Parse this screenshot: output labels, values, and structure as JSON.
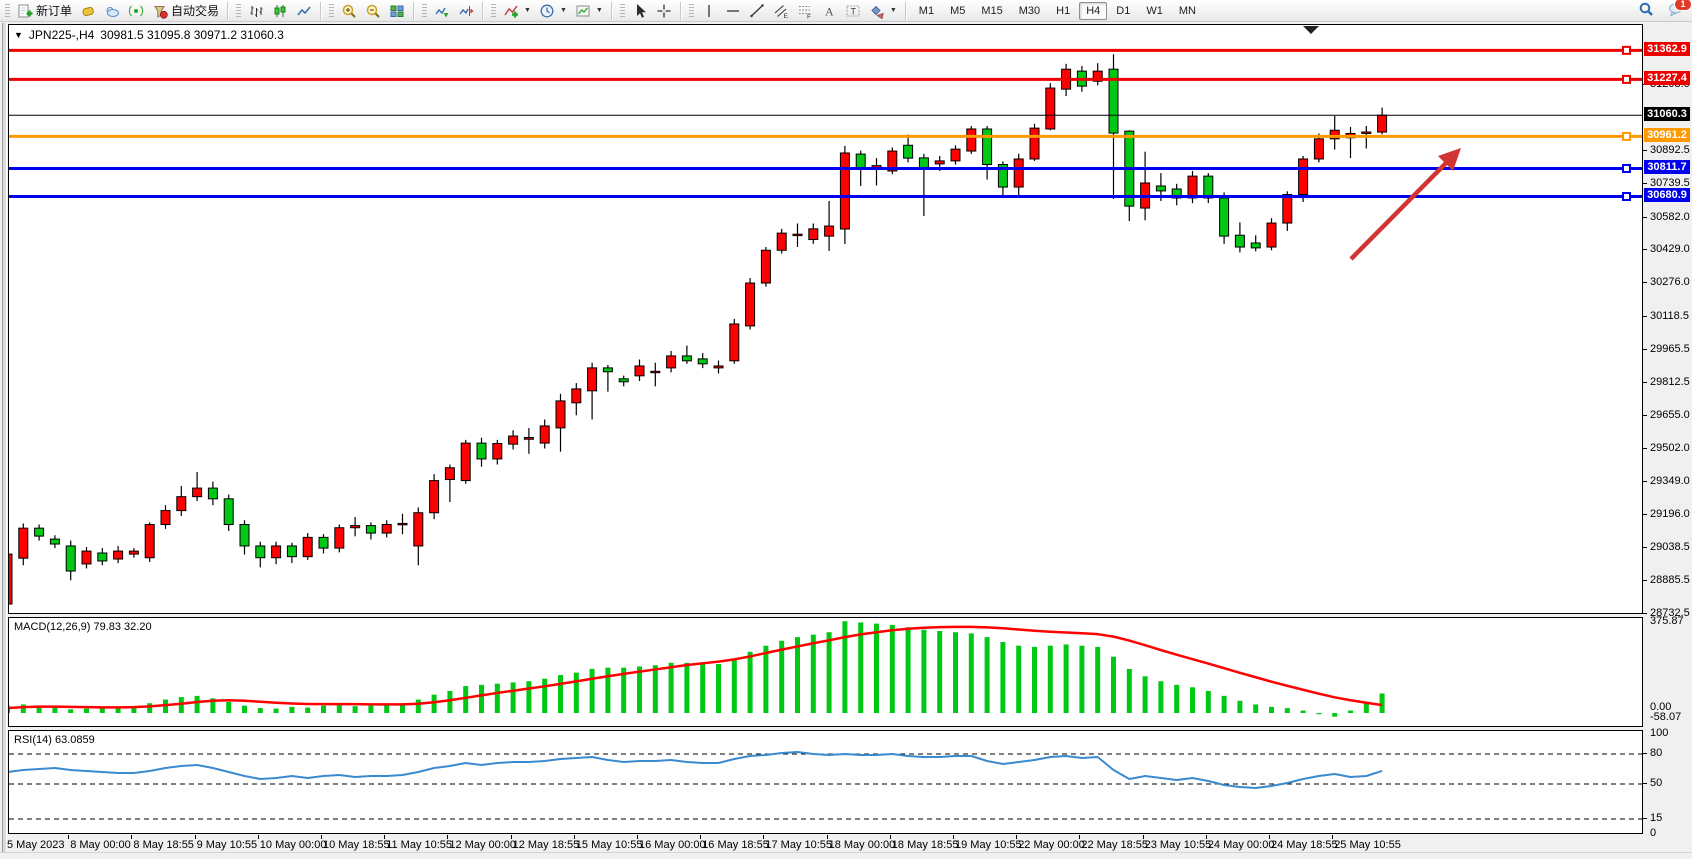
{
  "toolbar": {
    "groups": [
      {
        "items": [
          {
            "name": "new-order-button",
            "icon": "doc-plus-icon",
            "label": "新订单"
          },
          {
            "name": "deposit-button",
            "icon": "gold-icon"
          },
          {
            "name": "webtrader-button",
            "icon": "cloud-icon"
          },
          {
            "name": "signals-button",
            "icon": "signal-icon"
          },
          {
            "name": "auto-trading-button",
            "icon": "autotrade-icon",
            "label": "自动交易"
          }
        ]
      },
      {
        "items": [
          {
            "name": "bar-chart-button",
            "icon": "bar-chart-icon"
          },
          {
            "name": "candle-chart-button",
            "icon": "candle-chart-icon"
          },
          {
            "name": "line-chart-button",
            "icon": "line-chart-icon"
          }
        ]
      },
      {
        "items": [
          {
            "name": "zoom-in-button",
            "icon": "zoom-in-icon"
          },
          {
            "name": "zoom-out-button",
            "icon": "zoom-out-icon"
          },
          {
            "name": "tile-windows-button",
            "icon": "tile-windows-icon"
          }
        ]
      },
      {
        "items": [
          {
            "name": "auto-scroll-button",
            "icon": "auto-scroll-icon"
          },
          {
            "name": "chart-shift-button",
            "icon": "chart-shift-icon"
          }
        ]
      },
      {
        "items": [
          {
            "name": "indicators-button",
            "icon": "indicators-icon",
            "dropdown": true
          },
          {
            "name": "periods-button",
            "icon": "clock-icon",
            "dropdown": true
          },
          {
            "name": "templates-button",
            "icon": "template-icon",
            "dropdown": true
          }
        ]
      },
      {
        "items": [
          {
            "name": "cursor-button",
            "icon": "cursor-icon"
          },
          {
            "name": "crosshair-button",
            "icon": "crosshair-icon"
          }
        ]
      },
      {
        "items": [
          {
            "name": "vline-button",
            "icon": "vline-icon"
          },
          {
            "name": "hline-button",
            "icon": "hline-icon"
          },
          {
            "name": "trendline-button",
            "icon": "trendline-icon"
          },
          {
            "name": "channel-button",
            "icon": "channel-icon"
          },
          {
            "name": "fibonacci-button",
            "icon": "fibonacci-icon"
          },
          {
            "name": "text-button",
            "icon": "text-icon"
          },
          {
            "name": "text-label-button",
            "icon": "text-label-icon"
          },
          {
            "name": "shapes-button",
            "icon": "shapes-icon",
            "dropdown": true
          }
        ]
      }
    ],
    "timeframes": [
      "M1",
      "M5",
      "M15",
      "M30",
      "H1",
      "H4",
      "D1",
      "W1",
      "MN"
    ],
    "active_timeframe": "H4",
    "notification_count": "1"
  },
  "chart_data": {
    "type": "candlestick",
    "symbol": "JPN225-",
    "timeframe": "H4",
    "title": "JPN225-,H4",
    "ohlc_label": "30981.5 31095.8 30971.2 31060.3",
    "current_price": 31060.3,
    "up_color": "#ff0000",
    "down_color": "#00c814",
    "levels": [
      {
        "price": 31362.9,
        "label": "31362.9",
        "color": "#ee0000",
        "width": 3
      },
      {
        "price": 31227.4,
        "label": "31227.4",
        "color": "#ee0000",
        "width": 3
      },
      {
        "price": 30961.2,
        "label": "30961.2",
        "color": "#ff9900",
        "width": 3
      },
      {
        "price": 30811.7,
        "label": "30811.7",
        "color": "#0000ee",
        "width": 3
      },
      {
        "price": 30680.9,
        "label": "30680.9",
        "color": "#0000ee",
        "width": 3
      }
    ],
    "price_ticks": [
      31203.0,
      30892.5,
      30739.5,
      30582.0,
      30429.0,
      30276.0,
      30118.5,
      29965.5,
      29812.5,
      29655.0,
      29502.0,
      29349.0,
      29196.0,
      29038.5,
      28885.5,
      28732.5
    ],
    "time_labels": [
      "5 May 2023",
      "8 May 00:00",
      "8 May 18:55",
      "9 May 10:55",
      "10 May 00:00",
      "10 May 18:55",
      "11 May 10:55",
      "12 May 00:00",
      "12 May 18:55",
      "15 May 10:55",
      "16 May 00:00",
      "16 May 18:55",
      "17 May 10:55",
      "18 May 00:00",
      "18 May 18:55",
      "19 May 10:55",
      "22 May 00:00",
      "22 May 18:55",
      "23 May 10:55",
      "24 May 00:00",
      "24 May 18:55",
      "25 May 10:55"
    ],
    "candles": [
      [
        28779,
        29030,
        28735,
        29012
      ],
      [
        28993,
        29155,
        28960,
        29133
      ],
      [
        29133,
        29150,
        29075,
        29096
      ],
      [
        29082,
        29100,
        29040,
        29059
      ],
      [
        29050,
        29075,
        28890,
        28933
      ],
      [
        28966,
        29045,
        28945,
        29026
      ],
      [
        29017,
        29040,
        28960,
        28980
      ],
      [
        28989,
        29050,
        28970,
        29026
      ],
      [
        29012,
        29040,
        28995,
        29026
      ],
      [
        28995,
        29160,
        28975,
        29150
      ],
      [
        29150,
        29240,
        29130,
        29215
      ],
      [
        29215,
        29330,
        29190,
        29280
      ],
      [
        29280,
        29395,
        29260,
        29320
      ],
      [
        29320,
        29350,
        29240,
        29270
      ],
      [
        29270,
        29290,
        29120,
        29150
      ],
      [
        29150,
        29170,
        29010,
        29050
      ],
      [
        29050,
        29070,
        28950,
        28995
      ],
      [
        28995,
        29070,
        28965,
        29050
      ],
      [
        29050,
        29065,
        28970,
        29000
      ],
      [
        29000,
        29110,
        28985,
        29090
      ],
      [
        29090,
        29105,
        29015,
        29040
      ],
      [
        29040,
        29150,
        29020,
        29135
      ],
      [
        29135,
        29185,
        29095,
        29145
      ],
      [
        29145,
        29160,
        29080,
        29110
      ],
      [
        29110,
        29170,
        29090,
        29150
      ],
      [
        29150,
        29200,
        29105,
        29155
      ],
      [
        29050,
        29230,
        28960,
        29205
      ],
      [
        29205,
        29385,
        29175,
        29355
      ],
      [
        29360,
        29430,
        29255,
        29415
      ],
      [
        29355,
        29545,
        29340,
        29530
      ],
      [
        29530,
        29555,
        29420,
        29456
      ],
      [
        29456,
        29545,
        29430,
        29528
      ],
      [
        29525,
        29590,
        29500,
        29563
      ],
      [
        29548,
        29600,
        29480,
        29556
      ],
      [
        29530,
        29640,
        29505,
        29610
      ],
      [
        29601,
        29760,
        29490,
        29727
      ],
      [
        29718,
        29810,
        29660,
        29783
      ],
      [
        29774,
        29905,
        29640,
        29881
      ],
      [
        29881,
        29895,
        29770,
        29863
      ],
      [
        29830,
        29845,
        29795,
        29816
      ],
      [
        29844,
        29920,
        29820,
        29890
      ],
      [
        29860,
        29905,
        29795,
        29865
      ],
      [
        29881,
        29960,
        29860,
        29937
      ],
      [
        29937,
        29985,
        29900,
        29914
      ],
      [
        29923,
        29950,
        29880,
        29900
      ],
      [
        29881,
        29915,
        29855,
        29890
      ],
      [
        29914,
        30110,
        29900,
        30086
      ],
      [
        30077,
        30300,
        30060,
        30277
      ],
      [
        30277,
        30445,
        30260,
        30430
      ],
      [
        30430,
        30530,
        30415,
        30510
      ],
      [
        30500,
        30555,
        30445,
        30505
      ],
      [
        30480,
        30555,
        30460,
        30530
      ],
      [
        30496,
        30660,
        30427,
        30543
      ],
      [
        30529,
        30917,
        30459,
        30884
      ],
      [
        30879,
        30895,
        30730,
        30809
      ],
      [
        30815,
        30860,
        30732,
        30825
      ],
      [
        30800,
        30910,
        30785,
        30893
      ],
      [
        30920,
        30970,
        30840,
        30860
      ],
      [
        30861,
        30880,
        30590,
        30814
      ],
      [
        30833,
        30870,
        30800,
        30847
      ],
      [
        30847,
        30920,
        30830,
        30902
      ],
      [
        30893,
        31010,
        30880,
        30996
      ],
      [
        30996,
        31010,
        30760,
        30830
      ],
      [
        30830,
        30845,
        30680,
        30725
      ],
      [
        30725,
        30880,
        30680,
        30856
      ],
      [
        30856,
        31020,
        30847,
        31000
      ],
      [
        30996,
        31210,
        30990,
        31187
      ],
      [
        31182,
        31300,
        31150,
        31275
      ],
      [
        31266,
        31290,
        31170,
        31196
      ],
      [
        31219,
        31303,
        31200,
        31266
      ],
      [
        31275,
        31345,
        30669,
        30977
      ],
      [
        30986,
        30990,
        30566,
        30636
      ],
      [
        30627,
        30890,
        30570,
        30744
      ],
      [
        30730,
        30790,
        30660,
        30707
      ],
      [
        30716,
        30740,
        30640,
        30674
      ],
      [
        30674,
        30800,
        30650,
        30776
      ],
      [
        30776,
        30790,
        30650,
        30674
      ],
      [
        30674,
        30700,
        30460,
        30496
      ],
      [
        30500,
        30560,
        30420,
        30445
      ],
      [
        30464,
        30500,
        30425,
        30441
      ],
      [
        30445,
        30580,
        30430,
        30557
      ],
      [
        30557,
        30705,
        30520,
        30690
      ],
      [
        30690,
        30870,
        30655,
        30856
      ],
      [
        30856,
        30975,
        30840,
        30950
      ],
      [
        30950,
        31057,
        30900,
        30990
      ],
      [
        30955,
        31005,
        30860,
        30975
      ],
      [
        30975,
        31010,
        30905,
        30982
      ],
      [
        30981.5,
        31095.8,
        30971.2,
        31060.3
      ]
    ],
    "indicators": {
      "macd": {
        "label": "MACD(12,26,9) 79.83 32.20",
        "max_label": "375.87",
        "zero_label": "0.00",
        "min_label": "-58.07",
        "hist_color": "#00c814",
        "signal_color": "#ff0000",
        "histogram": [
          30,
          35,
          28,
          22,
          15,
          18,
          20,
          22,
          25,
          40,
          55,
          65,
          70,
          60,
          45,
          30,
          20,
          18,
          25,
          22,
          30,
          32,
          28,
          30,
          32,
          35,
          55,
          75,
          90,
          110,
          115,
          120,
          125,
          130,
          140,
          155,
          165,
          180,
          185,
          185,
          190,
          195,
          205,
          205,
          200,
          200,
          220,
          250,
          275,
          295,
          310,
          320,
          330,
          375,
          370,
          365,
          360,
          350,
          340,
          335,
          330,
          325,
          310,
          290,
          275,
          270,
          275,
          280,
          275,
          270,
          230,
          180,
          150,
          130,
          115,
          105,
          90,
          70,
          50,
          35,
          25,
          20,
          10,
          -5,
          -15,
          10,
          40,
          79.83
        ],
        "signal": [
          20,
          24,
          26,
          26,
          25,
          24,
          23,
          23,
          24,
          27,
          32,
          38,
          45,
          50,
          52,
          50,
          46,
          42,
          39,
          37,
          36,
          36,
          36,
          35,
          35,
          35,
          38,
          44,
          52,
          62,
          72,
          82,
          91,
          100,
          109,
          119,
          129,
          140,
          150,
          160,
          169,
          178,
          187,
          196,
          203,
          210,
          219,
          231,
          245,
          259,
          272,
          285,
          297,
          310,
          321,
          330,
          338,
          344,
          348,
          351,
          352,
          352,
          350,
          346,
          341,
          336,
          332,
          329,
          326,
          322,
          312,
          296,
          277,
          257,
          238,
          220,
          202,
          183,
          164,
          146,
          128,
          111,
          95,
          79,
          64,
          52,
          42,
          32.2
        ]
      },
      "rsi": {
        "label": "RSI(14) 63.0859",
        "line_color": "#3b8ad0",
        "scale_labels": [
          "100",
          "80",
          "50",
          "15",
          "0"
        ],
        "levels": [
          80,
          50,
          15
        ],
        "values": [
          62,
          64,
          65,
          66,
          64,
          63,
          62,
          61,
          61,
          63,
          66,
          68,
          69,
          66,
          62,
          58,
          55,
          56,
          58,
          56,
          58,
          59,
          57,
          58,
          58,
          59,
          62,
          66,
          68,
          71,
          69,
          71,
          72,
          72,
          73,
          75,
          76,
          77,
          74,
          72,
          73,
          73,
          74,
          72,
          71,
          71,
          75,
          78,
          79,
          81,
          82,
          80,
          79,
          80,
          79,
          79,
          80,
          78,
          77,
          77,
          78,
          78,
          73,
          70,
          72,
          74,
          77,
          78,
          76,
          77,
          64,
          55,
          58,
          56,
          54,
          56,
          53,
          49,
          47,
          46,
          48,
          51,
          55,
          58,
          60,
          57,
          58,
          63.09
        ]
      }
    },
    "annotation_arrow": {
      "color": "#d23434"
    }
  }
}
